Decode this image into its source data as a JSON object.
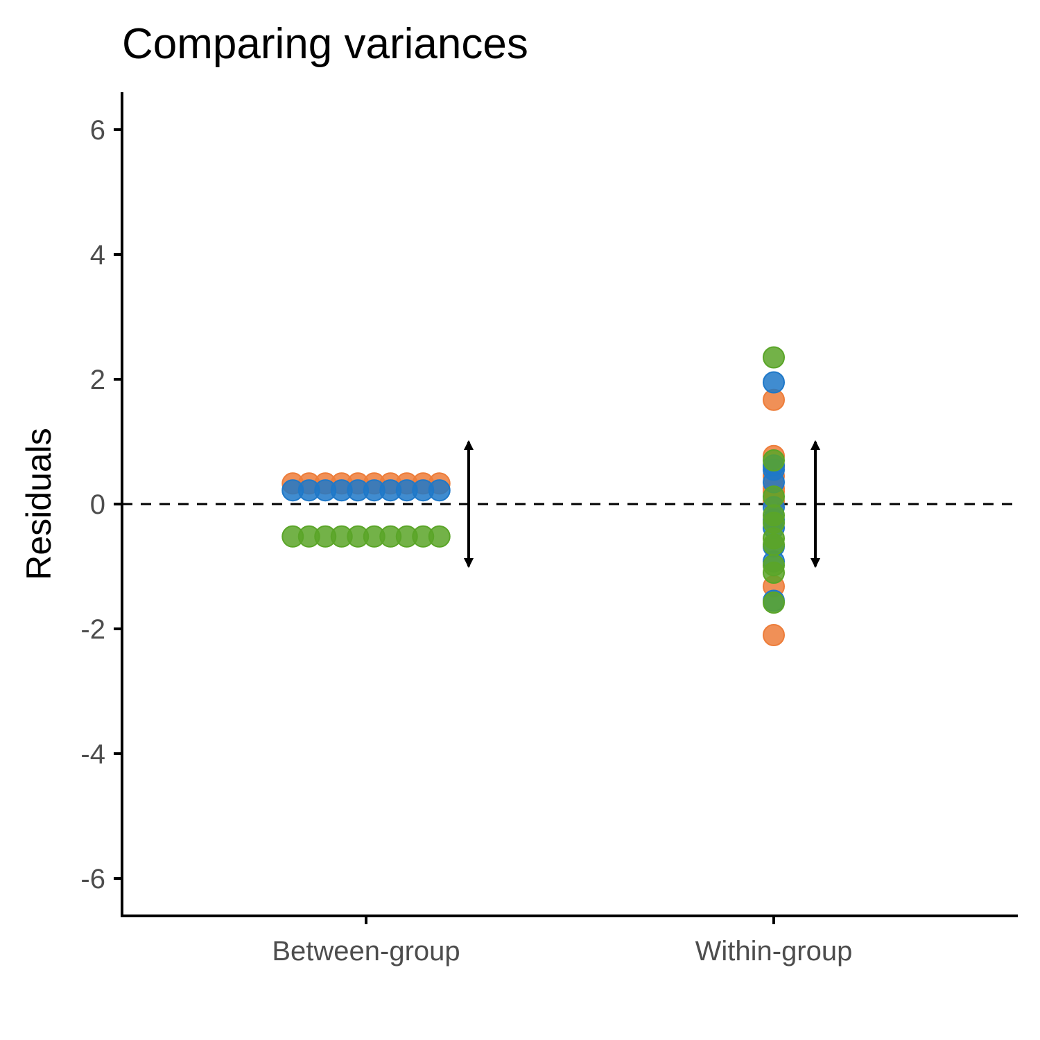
{
  "chart_data": {
    "type": "scatter",
    "title": "Comparing variances",
    "xlabel": "",
    "ylabel": "Residuals",
    "ylim": [
      -6.6,
      6.6
    ],
    "yticks": [
      6,
      4,
      2,
      0,
      -2,
      -4,
      -6
    ],
    "ytick_labels": [
      "6",
      "4",
      "2",
      "0",
      "-2",
      "-4",
      "-6"
    ],
    "categories": [
      "Between-group",
      "Within-group"
    ],
    "reference_line": 0,
    "colors": {
      "orange": "#ed7d3a",
      "blue": "#1f78c8",
      "green": "#5aa528",
      "axis": "#000000",
      "tick_label": "#4d4d4d"
    },
    "series": [
      {
        "name": "Between-group",
        "points": [
          {
            "group": "orange",
            "x_index": 0,
            "values": [
              0.33,
              0.33,
              0.33,
              0.33,
              0.33,
              0.33,
              0.33,
              0.33,
              0.33,
              0.33
            ]
          },
          {
            "group": "blue",
            "x_index": 0,
            "values": [
              0.22,
              0.22,
              0.22,
              0.22,
              0.22,
              0.22,
              0.22,
              0.22,
              0.22,
              0.22
            ]
          },
          {
            "group": "green",
            "x_index": 0,
            "values": [
              -0.52,
              -0.52,
              -0.52,
              -0.52,
              -0.52,
              -0.52,
              -0.52,
              -0.52,
              -0.52,
              -0.52
            ]
          }
        ]
      },
      {
        "name": "Within-group",
        "points": [
          {
            "group": "orange",
            "x_index": 1,
            "values": [
              1.67,
              0.77,
              0.45,
              0.2,
              0.05,
              -1.32,
              -2.1,
              0.25,
              0.6
            ]
          },
          {
            "group": "blue",
            "x_index": 1,
            "values": [
              1.95,
              0.62,
              0.35,
              -0.05,
              -0.38,
              -0.68,
              -0.92,
              -1.55,
              0.55,
              -0.25
            ]
          },
          {
            "group": "green",
            "x_index": 1,
            "values": [
              2.35,
              0.7,
              0.12,
              -0.18,
              -0.3,
              -0.55,
              -0.65,
              -0.98,
              -1.1,
              -1.58
            ]
          }
        ]
      }
    ],
    "spread_arrows": [
      {
        "category_index": 0,
        "from": -1.0,
        "to": 1.0
      },
      {
        "category_index": 1,
        "from": -1.0,
        "to": 1.0
      }
    ]
  }
}
